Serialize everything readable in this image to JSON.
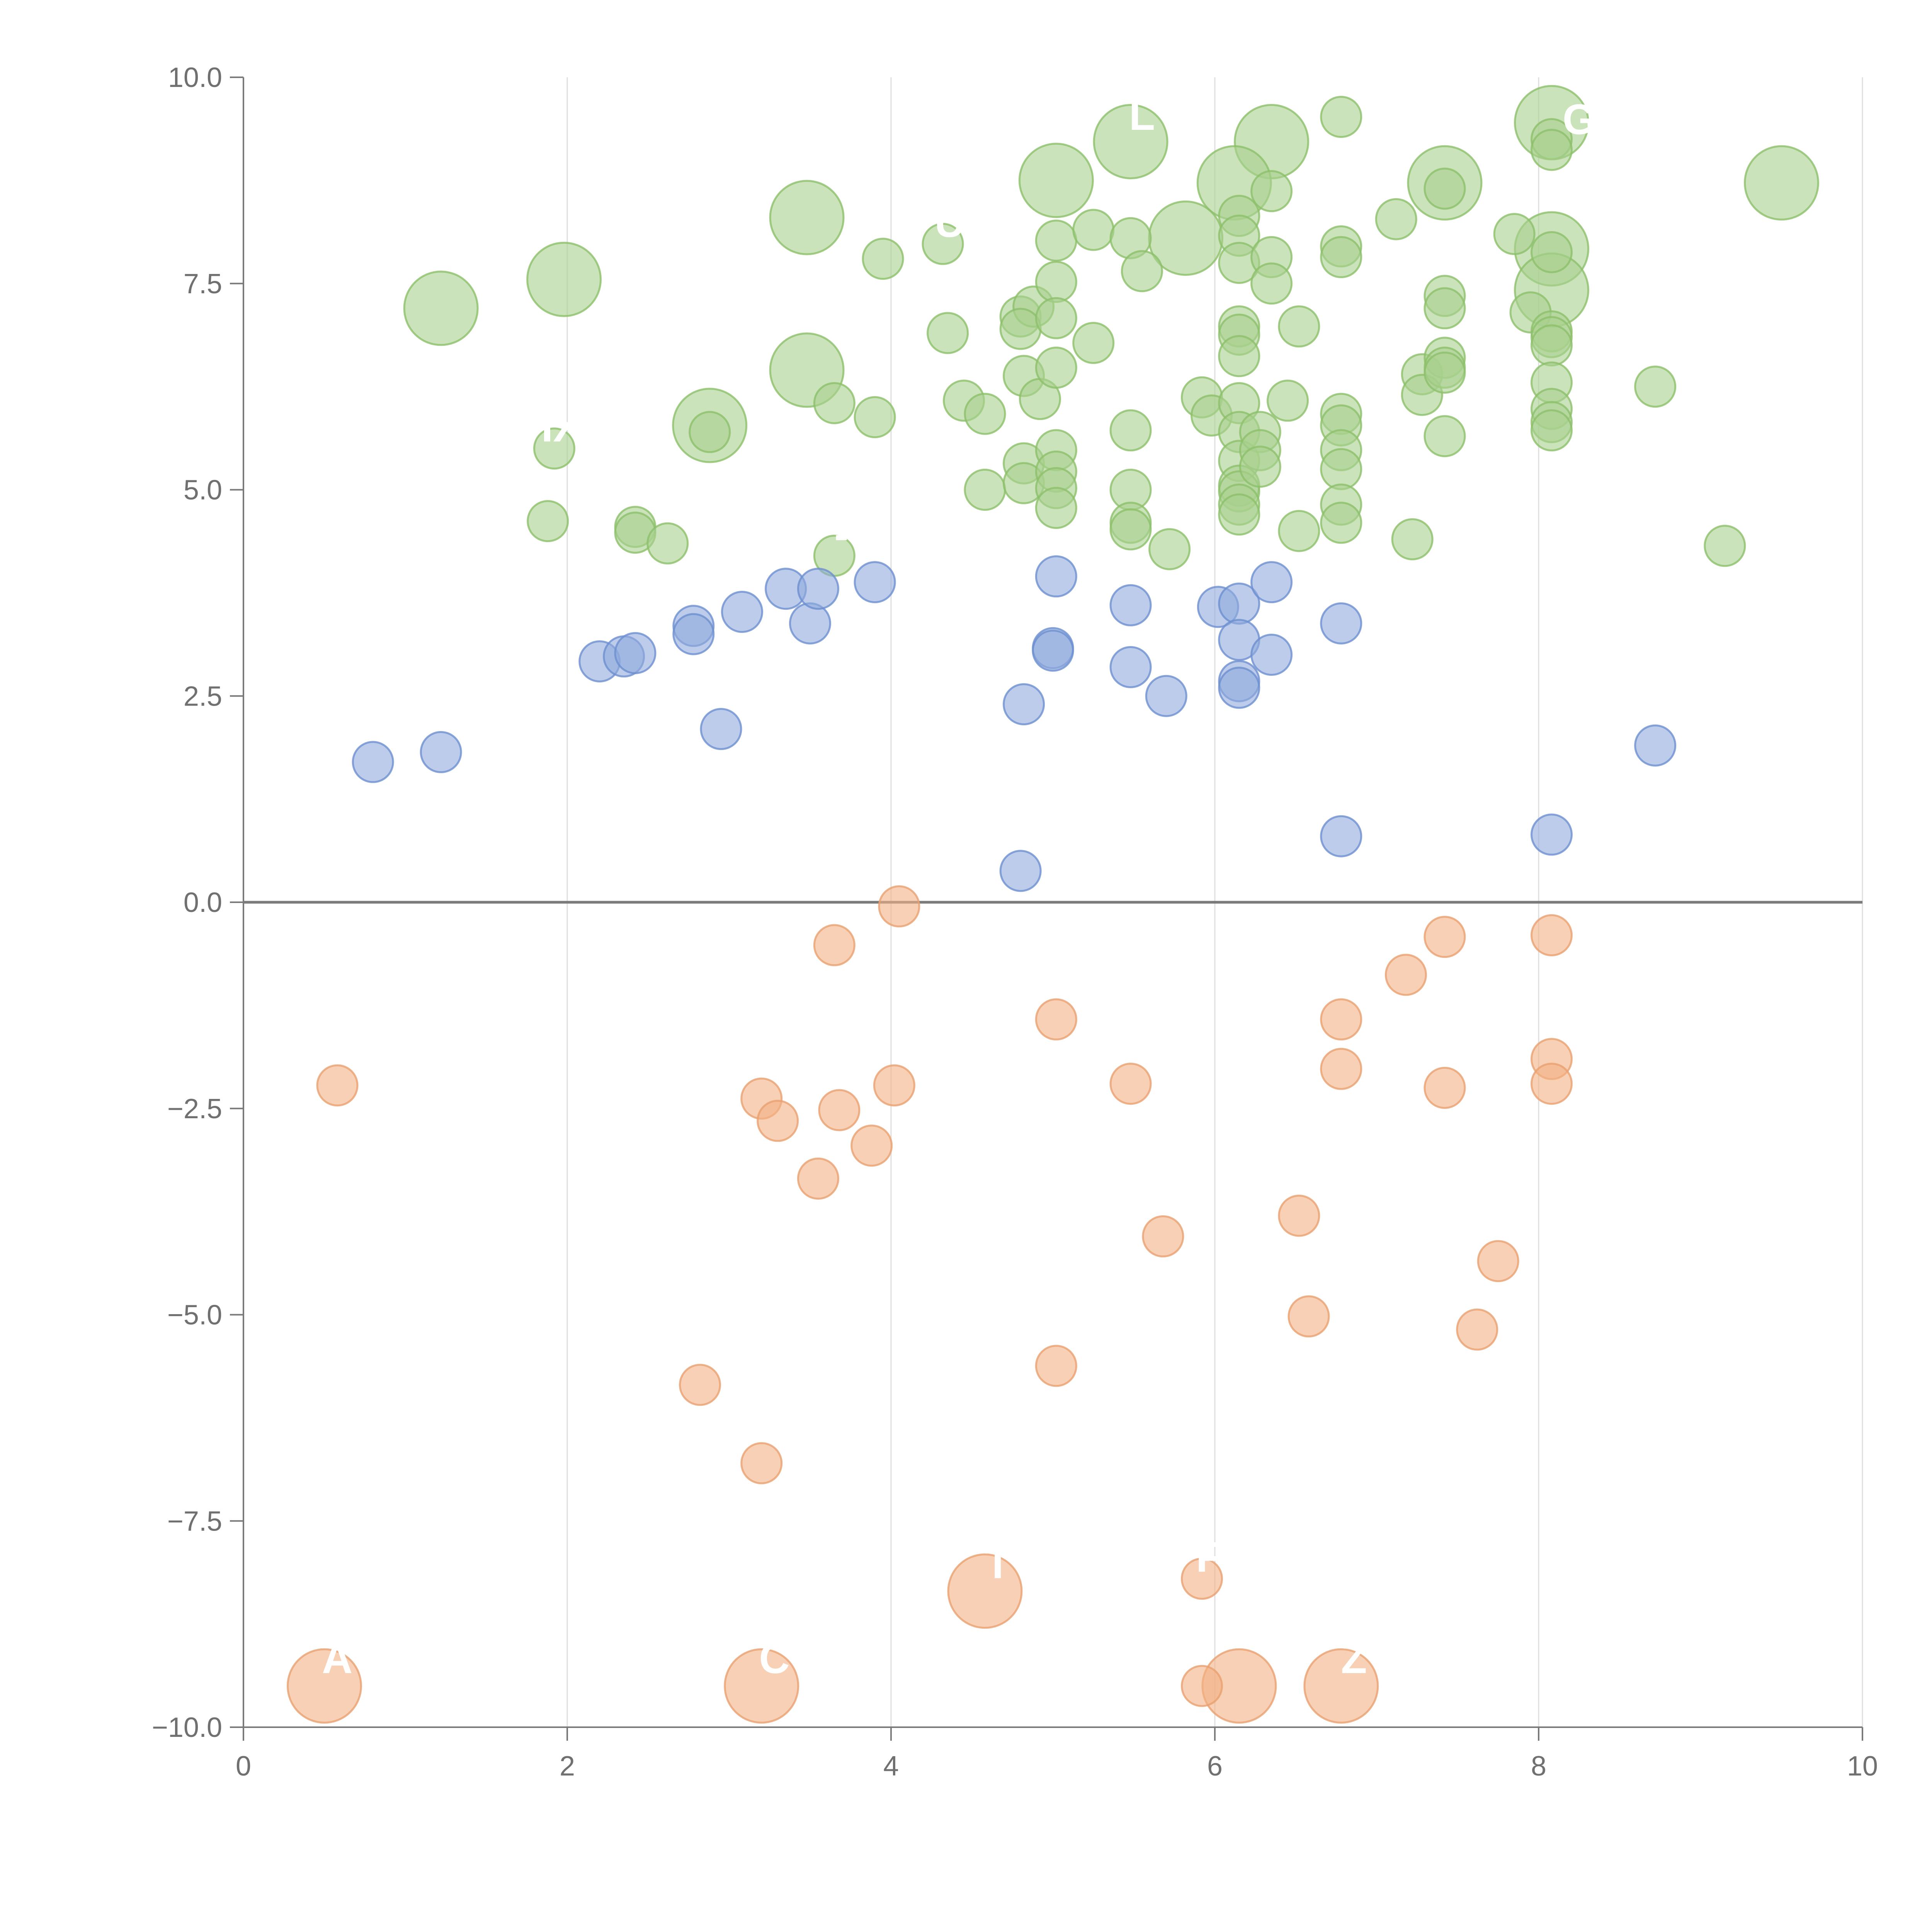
{
  "chart_data": {
    "type": "scatter",
    "title": "",
    "xlabel": "",
    "ylabel": "",
    "xlim": [
      0,
      10
    ],
    "ylim": [
      -10,
      10
    ],
    "x_ticks": [
      "0",
      "2",
      "4",
      "6",
      "8",
      "10"
    ],
    "y_ticks": [
      "10.0",
      "7.5",
      "5.0",
      "2.5",
      "0.0",
      "−2.5",
      "−5.0",
      "−7.5",
      "−10.0"
    ],
    "x_tick_values": [
      0,
      2,
      4,
      6,
      8,
      10
    ],
    "y_tick_values": [
      10,
      7.5,
      5,
      2.5,
      0,
      -2.5,
      -5,
      -7.5,
      -10
    ],
    "grid": "vertical",
    "zero_line": true,
    "series": [
      {
        "color": "#a9d18e",
        "stroke": "#8cbf6a",
        "points": [
          {
            "x": 1.22,
            "y": 7.2,
            "s": 2
          },
          {
            "x": 1.98,
            "y": 7.55,
            "s": 2
          },
          {
            "x": 3.48,
            "y": 8.3,
            "s": 2
          },
          {
            "x": 3.48,
            "y": 6.45,
            "s": 2
          },
          {
            "x": 2.88,
            "y": 5.78,
            "s": 2
          },
          {
            "x": 2.88,
            "y": 5.7,
            "s": 1
          },
          {
            "x": 5.02,
            "y": 8.75,
            "s": 2
          },
          {
            "x": 5.48,
            "y": 9.22,
            "s": 2
          },
          {
            "x": 6.35,
            "y": 9.22,
            "s": 2
          },
          {
            "x": 6.12,
            "y": 8.72,
            "s": 2
          },
          {
            "x": 5.82,
            "y": 8.05,
            "s": 2
          },
          {
            "x": 7.42,
            "y": 8.72,
            "s": 2
          },
          {
            "x": 8.08,
            "y": 9.45,
            "s": 2
          },
          {
            "x": 8.08,
            "y": 7.92,
            "s": 2
          },
          {
            "x": 8.08,
            "y": 7.42,
            "s": 2
          },
          {
            "x": 9.5,
            "y": 8.72,
            "s": 2
          },
          {
            "x": 4.32,
            "y": 7.98,
            "s": 1,
            "label": "U"
          },
          {
            "x": 3.95,
            "y": 7.8,
            "s": 1
          },
          {
            "x": 1.92,
            "y": 5.5,
            "s": 1,
            "label": "IX"
          },
          {
            "x": 1.88,
            "y": 4.62,
            "s": 1
          },
          {
            "x": 2.42,
            "y": 4.55,
            "s": 1
          },
          {
            "x": 2.42,
            "y": 4.48,
            "s": 1
          },
          {
            "x": 2.62,
            "y": 4.35,
            "s": 1
          },
          {
            "x": 3.65,
            "y": 4.2,
            "s": 1,
            "label": "-"
          },
          {
            "x": 3.65,
            "y": 6.05,
            "s": 1
          },
          {
            "x": 3.9,
            "y": 5.88,
            "s": 1
          },
          {
            "x": 4.35,
            "y": 6.9,
            "s": 1
          },
          {
            "x": 4.45,
            "y": 6.08,
            "s": 1
          },
          {
            "x": 4.58,
            "y": 5.92,
            "s": 1
          },
          {
            "x": 4.58,
            "y": 5.0,
            "s": 1
          },
          {
            "x": 4.8,
            "y": 7.1,
            "s": 1
          },
          {
            "x": 4.88,
            "y": 7.22,
            "s": 1
          },
          {
            "x": 4.8,
            "y": 6.95,
            "s": 1
          },
          {
            "x": 4.82,
            "y": 6.38,
            "s": 1
          },
          {
            "x": 4.92,
            "y": 6.1,
            "s": 1
          },
          {
            "x": 4.82,
            "y": 5.32,
            "s": 1
          },
          {
            "x": 4.82,
            "y": 5.08,
            "s": 1
          },
          {
            "x": 5.02,
            "y": 8.02,
            "s": 1
          },
          {
            "x": 5.02,
            "y": 7.52,
            "s": 1
          },
          {
            "x": 5.02,
            "y": 7.08,
            "s": 1
          },
          {
            "x": 5.02,
            "y": 6.48,
            "s": 1
          },
          {
            "x": 5.02,
            "y": 5.48,
            "s": 1
          },
          {
            "x": 5.02,
            "y": 5.22,
            "s": 1
          },
          {
            "x": 5.02,
            "y": 5.02,
            "s": 1
          },
          {
            "x": 5.02,
            "y": 4.78,
            "s": 1
          },
          {
            "x": 5.25,
            "y": 8.15,
            "s": 1
          },
          {
            "x": 5.25,
            "y": 6.78,
            "s": 1
          },
          {
            "x": 5.48,
            "y": 8.05,
            "s": 1
          },
          {
            "x": 5.55,
            "y": 7.65,
            "s": 1
          },
          {
            "x": 5.48,
            "y": 5.72,
            "s": 1
          },
          {
            "x": 5.48,
            "y": 5.0,
            "s": 1
          },
          {
            "x": 5.48,
            "y": 4.6,
            "s": 1
          },
          {
            "x": 5.48,
            "y": 4.52,
            "s": 1
          },
          {
            "x": 5.72,
            "y": 4.28,
            "s": 1
          },
          {
            "x": 5.92,
            "y": 6.12,
            "s": 1
          },
          {
            "x": 5.98,
            "y": 5.9,
            "s": 1
          },
          {
            "x": 6.15,
            "y": 8.32,
            "s": 1
          },
          {
            "x": 6.15,
            "y": 8.08,
            "s": 1
          },
          {
            "x": 6.15,
            "y": 7.75,
            "s": 1
          },
          {
            "x": 6.15,
            "y": 6.98,
            "s": 1
          },
          {
            "x": 6.15,
            "y": 6.88,
            "s": 1
          },
          {
            "x": 6.15,
            "y": 6.62,
            "s": 1
          },
          {
            "x": 6.15,
            "y": 6.05,
            "s": 1
          },
          {
            "x": 6.15,
            "y": 5.7,
            "s": 1
          },
          {
            "x": 6.15,
            "y": 5.35,
            "s": 1
          },
          {
            "x": 6.15,
            "y": 5.05,
            "s": 1
          },
          {
            "x": 6.15,
            "y": 4.98,
            "s": 1
          },
          {
            "x": 6.15,
            "y": 4.82,
            "s": 1
          },
          {
            "x": 6.15,
            "y": 4.7,
            "s": 1
          },
          {
            "x": 6.35,
            "y": 8.62,
            "s": 1
          },
          {
            "x": 6.35,
            "y": 7.82,
            "s": 1
          },
          {
            "x": 6.35,
            "y": 7.5,
            "s": 1
          },
          {
            "x": 6.28,
            "y": 5.7,
            "s": 1
          },
          {
            "x": 6.28,
            "y": 5.48,
            "s": 1
          },
          {
            "x": 6.28,
            "y": 5.28,
            "s": 1
          },
          {
            "x": 6.45,
            "y": 6.08,
            "s": 1
          },
          {
            "x": 6.52,
            "y": 6.98,
            "s": 1
          },
          {
            "x": 6.52,
            "y": 4.5,
            "s": 1
          },
          {
            "x": 6.78,
            "y": 9.52,
            "s": 1
          },
          {
            "x": 6.78,
            "y": 7.95,
            "s": 1
          },
          {
            "x": 6.78,
            "y": 7.82,
            "s": 1
          },
          {
            "x": 6.78,
            "y": 5.92,
            "s": 1
          },
          {
            "x": 6.78,
            "y": 5.78,
            "s": 1
          },
          {
            "x": 6.78,
            "y": 5.48,
            "s": 1
          },
          {
            "x": 6.78,
            "y": 5.25,
            "s": 1
          },
          {
            "x": 6.78,
            "y": 4.82,
            "s": 1
          },
          {
            "x": 6.78,
            "y": 4.6,
            "s": 1
          },
          {
            "x": 7.12,
            "y": 8.28,
            "s": 1
          },
          {
            "x": 7.22,
            "y": 4.4,
            "s": 1
          },
          {
            "x": 7.28,
            "y": 6.4,
            "s": 1
          },
          {
            "x": 7.28,
            "y": 6.15,
            "s": 1
          },
          {
            "x": 7.42,
            "y": 8.65,
            "s": 1
          },
          {
            "x": 7.42,
            "y": 7.35,
            "s": 1
          },
          {
            "x": 7.42,
            "y": 7.2,
            "s": 1
          },
          {
            "x": 7.42,
            "y": 6.6,
            "s": 1
          },
          {
            "x": 7.42,
            "y": 6.48,
            "s": 1
          },
          {
            "x": 7.42,
            "y": 6.42,
            "s": 1
          },
          {
            "x": 7.42,
            "y": 5.65,
            "s": 1
          },
          {
            "x": 7.85,
            "y": 8.1,
            "s": 1
          },
          {
            "x": 7.95,
            "y": 7.15,
            "s": 1
          },
          {
            "x": 8.08,
            "y": 9.25,
            "s": 1
          },
          {
            "x": 8.08,
            "y": 9.12,
            "s": 1
          },
          {
            "x": 8.08,
            "y": 7.88,
            "s": 1
          },
          {
            "x": 8.08,
            "y": 6.92,
            "s": 1
          },
          {
            "x": 8.08,
            "y": 6.85,
            "s": 1
          },
          {
            "x": 8.08,
            "y": 6.75,
            "s": 1
          },
          {
            "x": 8.08,
            "y": 6.3,
            "s": 1
          },
          {
            "x": 8.08,
            "y": 5.98,
            "s": 1
          },
          {
            "x": 8.08,
            "y": 5.82,
            "s": 1
          },
          {
            "x": 8.08,
            "y": 5.72,
            "s": 1
          },
          {
            "x": 8.72,
            "y": 6.25,
            "s": 1
          },
          {
            "x": 9.15,
            "y": 4.32,
            "s": 1
          }
        ]
      },
      {
        "color": "#8faadc",
        "stroke": "#6d8fcf",
        "points": [
          {
            "x": 0.8,
            "y": 1.7
          },
          {
            "x": 1.22,
            "y": 1.82
          },
          {
            "x": 2.2,
            "y": 2.92
          },
          {
            "x": 2.35,
            "y": 2.98
          },
          {
            "x": 2.42,
            "y": 3.02
          },
          {
            "x": 2.78,
            "y": 3.35
          },
          {
            "x": 2.78,
            "y": 3.25
          },
          {
            "x": 2.95,
            "y": 2.1
          },
          {
            "x": 3.08,
            "y": 3.52
          },
          {
            "x": 3.35,
            "y": 3.8
          },
          {
            "x": 3.5,
            "y": 3.38
          },
          {
            "x": 3.55,
            "y": 3.8
          },
          {
            "x": 3.9,
            "y": 3.88
          },
          {
            "x": 4.82,
            "y": 2.4
          },
          {
            "x": 4.8,
            "y": 0.38
          },
          {
            "x": 5.02,
            "y": 3.95
          },
          {
            "x": 5.0,
            "y": 3.08
          },
          {
            "x": 5.0,
            "y": 3.05
          },
          {
            "x": 5.48,
            "y": 3.6
          },
          {
            "x": 5.48,
            "y": 2.85
          },
          {
            "x": 5.7,
            "y": 2.5
          },
          {
            "x": 6.02,
            "y": 3.58
          },
          {
            "x": 6.15,
            "y": 3.62
          },
          {
            "x": 6.15,
            "y": 3.18
          },
          {
            "x": 6.15,
            "y": 2.68
          },
          {
            "x": 6.15,
            "y": 2.6
          },
          {
            "x": 6.35,
            "y": 3.88
          },
          {
            "x": 6.35,
            "y": 3.0
          },
          {
            "x": 6.78,
            "y": 3.38
          },
          {
            "x": 6.78,
            "y": 0.8
          },
          {
            "x": 8.08,
            "y": 0.82
          },
          {
            "x": 8.72,
            "y": 1.9
          }
        ]
      },
      {
        "color": "#f4b183",
        "stroke": "#e8a070",
        "points": [
          {
            "x": 0.5,
            "y": -9.5,
            "s": 2,
            "label": "A"
          },
          {
            "x": 3.2,
            "y": -9.5,
            "s": 2,
            "label": "C"
          },
          {
            "x": 4.58,
            "y": -8.35,
            "s": 2,
            "label": "T"
          },
          {
            "x": 6.15,
            "y": -9.5,
            "s": 2
          },
          {
            "x": 6.78,
            "y": -9.5,
            "s": 2,
            "label": "Z"
          },
          {
            "x": 5.92,
            "y": -9.5,
            "s": 1
          },
          {
            "x": 5.92,
            "y": -8.2,
            "s": 1,
            "label": "F"
          },
          {
            "x": 0.58,
            "y": -2.22,
            "s": 1
          },
          {
            "x": 2.82,
            "y": -5.85,
            "s": 1
          },
          {
            "x": 3.2,
            "y": -2.38,
            "s": 1
          },
          {
            "x": 3.3,
            "y": -2.65,
            "s": 1
          },
          {
            "x": 3.2,
            "y": -6.8,
            "s": 1
          },
          {
            "x": 3.55,
            "y": -3.35,
            "s": 1
          },
          {
            "x": 3.65,
            "y": -0.52,
            "s": 1
          },
          {
            "x": 3.68,
            "y": -2.52,
            "s": 1
          },
          {
            "x": 3.88,
            "y": -2.95,
            "s": 1
          },
          {
            "x": 4.05,
            "y": -0.05,
            "s": 1
          },
          {
            "x": 4.02,
            "y": -2.22,
            "s": 1
          },
          {
            "x": 5.02,
            "y": -1.42,
            "s": 1
          },
          {
            "x": 5.02,
            "y": -5.62,
            "s": 1
          },
          {
            "x": 5.48,
            "y": -2.2,
            "s": 1
          },
          {
            "x": 5.68,
            "y": -4.05,
            "s": 1
          },
          {
            "x": 6.52,
            "y": -3.8,
            "s": 1
          },
          {
            "x": 6.58,
            "y": -5.02,
            "s": 1
          },
          {
            "x": 6.78,
            "y": -1.42,
            "s": 1
          },
          {
            "x": 6.78,
            "y": -2.02,
            "s": 1
          },
          {
            "x": 7.18,
            "y": -0.88,
            "s": 1
          },
          {
            "x": 7.42,
            "y": -0.42,
            "s": 1
          },
          {
            "x": 7.42,
            "y": -2.25,
            "s": 1
          },
          {
            "x": 7.62,
            "y": -5.18,
            "s": 1
          },
          {
            "x": 7.75,
            "y": -4.35,
            "s": 1
          },
          {
            "x": 8.08,
            "y": -0.4,
            "s": 1
          },
          {
            "x": 8.08,
            "y": -1.9,
            "s": 1
          },
          {
            "x": 8.08,
            "y": -2.2,
            "s": 1
          }
        ]
      }
    ],
    "text_marks": [
      {
        "x": 5.55,
        "y": 9.55,
        "text": "L"
      },
      {
        "x": 8.25,
        "y": 9.5,
        "text": "G"
      }
    ]
  }
}
